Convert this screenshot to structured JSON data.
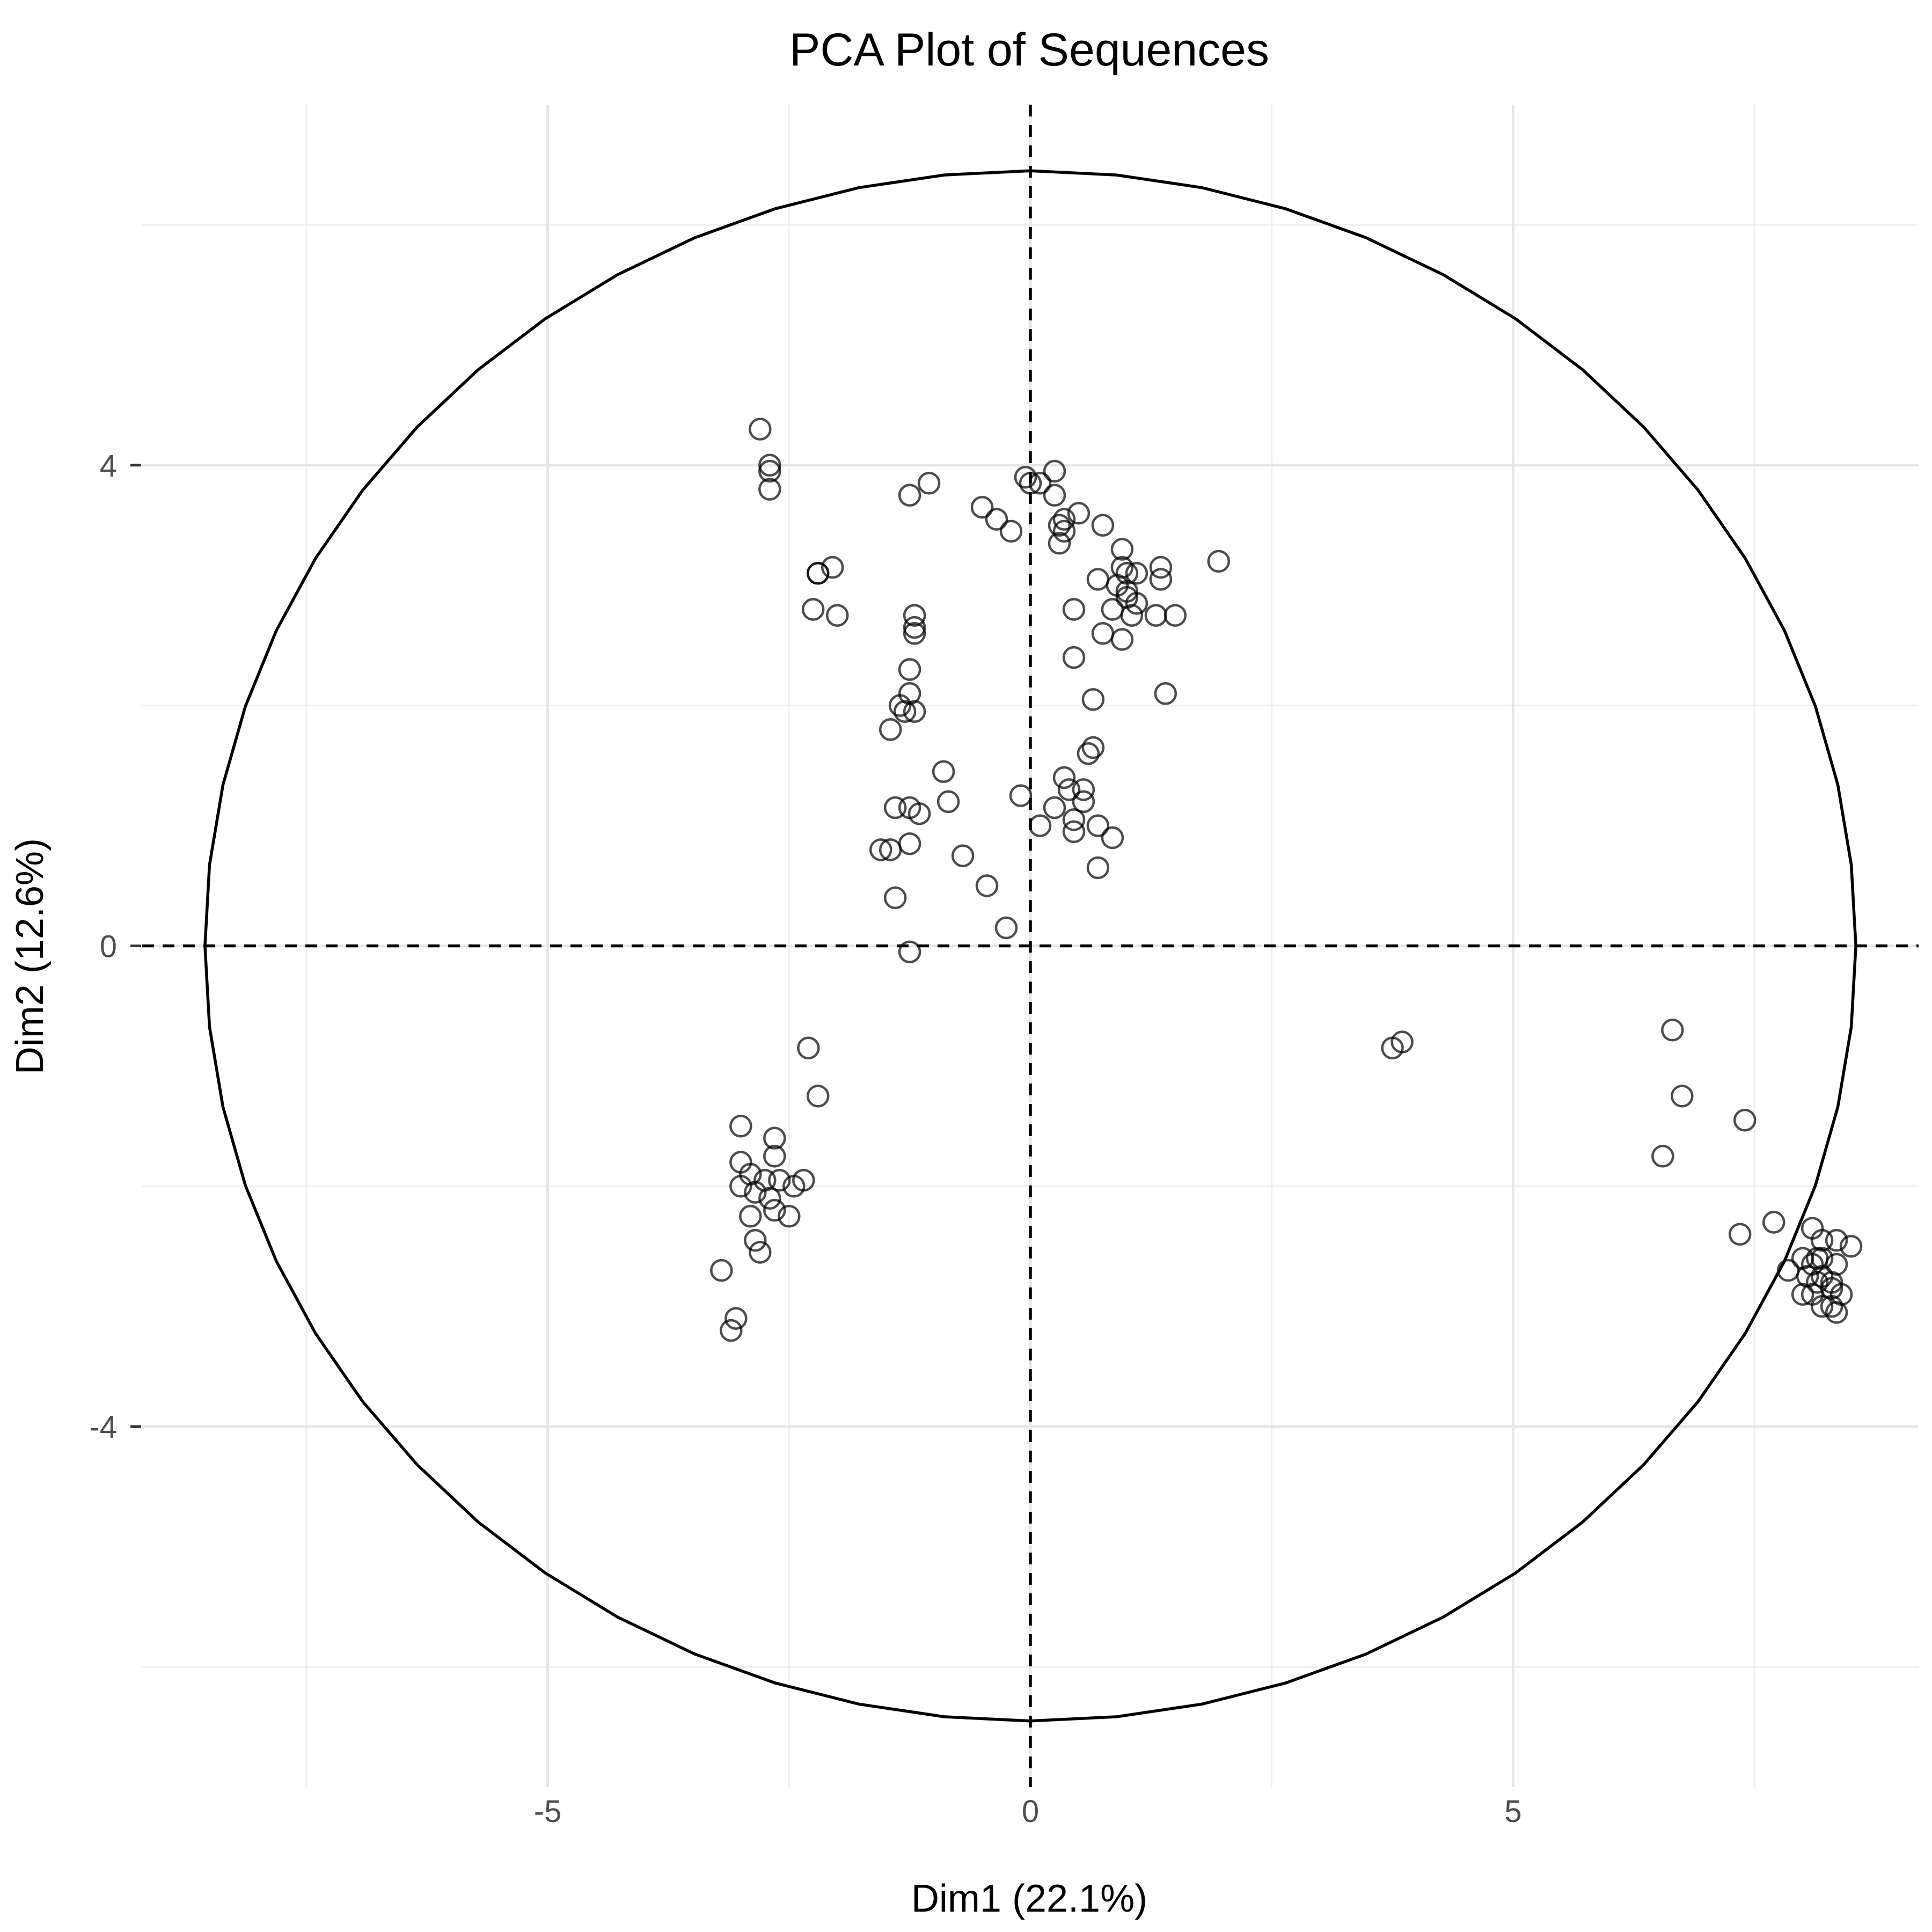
{
  "chart_data": {
    "type": "scatter",
    "title": "PCA Plot of Sequences",
    "xlabel": "Dim1 (22.1%)",
    "ylabel": "Dim2 (12.6%)",
    "xlim": [
      -9.2,
      9.2
    ],
    "ylim": [
      -7.0,
      7.0
    ],
    "x_ticks": [
      -5,
      0,
      5
    ],
    "y_ticks": [
      -4,
      0,
      4
    ],
    "x_tick_labels": [
      "-5",
      "0",
      "5"
    ],
    "y_tick_labels": [
      "-4",
      "0",
      "4"
    ],
    "x_minor_gridlines": [
      -7.5,
      -2.5,
      2.5,
      7.5
    ],
    "y_minor_gridlines": [
      -6,
      -2,
      2,
      6
    ],
    "grid": true,
    "reference_lines": {
      "x": 0,
      "y": 0,
      "style": "dashed"
    },
    "circle": {
      "center": [
        0,
        0
      ],
      "radius_x": 8.55,
      "radius_y": 6.45
    },
    "point_style": {
      "shape": "open circle",
      "color": "#000000",
      "opacity": 0.7
    },
    "series": [
      {
        "points": [
          [
            -2.8,
            4.3
          ],
          [
            -2.7,
            4.0
          ],
          [
            -2.7,
            3.95
          ],
          [
            -2.7,
            3.8
          ],
          [
            -2.2,
            3.1
          ],
          [
            -2.05,
            3.15
          ],
          [
            -2.2,
            3.1
          ],
          [
            -2.25,
            2.8
          ],
          [
            -2.0,
            2.75
          ],
          [
            -1.25,
            3.75
          ],
          [
            -1.05,
            3.85
          ],
          [
            -0.5,
            3.65
          ],
          [
            -0.35,
            3.55
          ],
          [
            -0.2,
            3.45
          ],
          [
            -0.05,
            3.9
          ],
          [
            0.0,
            3.85
          ],
          [
            0.25,
            3.95
          ],
          [
            0.25,
            3.75
          ],
          [
            0.1,
            3.85
          ],
          [
            0.5,
            3.6
          ],
          [
            0.3,
            3.5
          ],
          [
            0.35,
            3.55
          ],
          [
            0.35,
            3.45
          ],
          [
            0.3,
            3.35
          ],
          [
            0.75,
            3.5
          ],
          [
            0.95,
            3.3
          ],
          [
            0.95,
            3.15
          ],
          [
            1.0,
            3.1
          ],
          [
            1.1,
            3.1
          ],
          [
            1.35,
            3.15
          ],
          [
            1.35,
            3.05
          ],
          [
            1.95,
            3.2
          ],
          [
            0.7,
            3.05
          ],
          [
            0.9,
            3.0
          ],
          [
            1.0,
            2.9
          ],
          [
            1.0,
            2.95
          ],
          [
            1.1,
            2.85
          ],
          [
            0.85,
            2.8
          ],
          [
            1.05,
            2.75
          ],
          [
            1.3,
            2.75
          ],
          [
            1.5,
            2.75
          ],
          [
            0.45,
            2.8
          ],
          [
            0.75,
            2.6
          ],
          [
            0.95,
            2.55
          ],
          [
            0.45,
            2.4
          ],
          [
            1.4,
            2.1
          ],
          [
            0.65,
            2.05
          ],
          [
            -1.2,
            2.75
          ],
          [
            -1.2,
            2.65
          ],
          [
            -1.2,
            2.6
          ],
          [
            -1.25,
            2.3
          ],
          [
            -1.25,
            2.1
          ],
          [
            -1.35,
            2.0
          ],
          [
            -1.3,
            1.95
          ],
          [
            -1.2,
            1.95
          ],
          [
            -1.45,
            1.8
          ],
          [
            0.65,
            1.65
          ],
          [
            0.6,
            1.6
          ],
          [
            -0.9,
            1.45
          ],
          [
            0.35,
            1.4
          ],
          [
            0.4,
            1.3
          ],
          [
            0.55,
            1.3
          ],
          [
            0.55,
            1.2
          ],
          [
            -0.85,
            1.2
          ],
          [
            -0.1,
            1.25
          ],
          [
            0.25,
            1.15
          ],
          [
            0.45,
            1.05
          ],
          [
            -1.4,
            1.15
          ],
          [
            -1.25,
            1.15
          ],
          [
            -1.15,
            1.1
          ],
          [
            0.1,
            1.0
          ],
          [
            0.45,
            0.95
          ],
          [
            0.7,
            1.0
          ],
          [
            0.85,
            0.9
          ],
          [
            -1.55,
            0.8
          ],
          [
            -1.45,
            0.8
          ],
          [
            -1.25,
            0.85
          ],
          [
            -0.7,
            0.75
          ],
          [
            0.7,
            0.65
          ],
          [
            -0.45,
            0.5
          ],
          [
            -1.4,
            0.4
          ],
          [
            -0.25,
            0.15
          ],
          [
            -1.25,
            -0.05
          ],
          [
            -2.3,
            -0.85
          ],
          [
            -2.2,
            -1.25
          ],
          [
            -3.0,
            -1.5
          ],
          [
            -2.65,
            -1.6
          ],
          [
            -3.0,
            -1.8
          ],
          [
            -2.65,
            -1.75
          ],
          [
            -2.9,
            -1.9
          ],
          [
            -2.75,
            -1.95
          ],
          [
            -2.6,
            -1.95
          ],
          [
            -2.35,
            -1.95
          ],
          [
            -2.45,
            -2.0
          ],
          [
            -3.0,
            -2.0
          ],
          [
            -2.85,
            -2.05
          ],
          [
            -2.7,
            -2.1
          ],
          [
            -2.65,
            -2.2
          ],
          [
            -2.5,
            -2.25
          ],
          [
            -2.9,
            -2.25
          ],
          [
            -2.85,
            -2.45
          ],
          [
            -2.8,
            -2.55
          ],
          [
            -3.2,
            -2.7
          ],
          [
            -3.05,
            -3.1
          ],
          [
            -3.1,
            -3.2
          ],
          [
            3.75,
            -0.85
          ],
          [
            3.85,
            -0.8
          ],
          [
            6.65,
            -0.7
          ],
          [
            6.75,
            -1.25
          ],
          [
            7.4,
            -1.45
          ],
          [
            6.55,
            -1.75
          ],
          [
            7.35,
            -2.4
          ],
          [
            7.7,
            -2.3
          ],
          [
            8.1,
            -2.35
          ],
          [
            8.2,
            -2.45
          ],
          [
            8.35,
            -2.45
          ],
          [
            8.5,
            -2.5
          ],
          [
            8.0,
            -2.6
          ],
          [
            8.1,
            -2.65
          ],
          [
            8.15,
            -2.6
          ],
          [
            8.2,
            -2.6
          ],
          [
            8.35,
            -2.65
          ],
          [
            7.85,
            -2.7
          ],
          [
            8.05,
            -2.75
          ],
          [
            8.2,
            -2.75
          ],
          [
            8.15,
            -2.8
          ],
          [
            8.3,
            -2.8
          ],
          [
            8.0,
            -2.9
          ],
          [
            8.1,
            -2.9
          ],
          [
            8.3,
            -2.85
          ],
          [
            8.4,
            -2.9
          ],
          [
            8.2,
            -3.0
          ],
          [
            8.3,
            -3.0
          ],
          [
            8.35,
            -3.05
          ]
        ]
      }
    ]
  }
}
